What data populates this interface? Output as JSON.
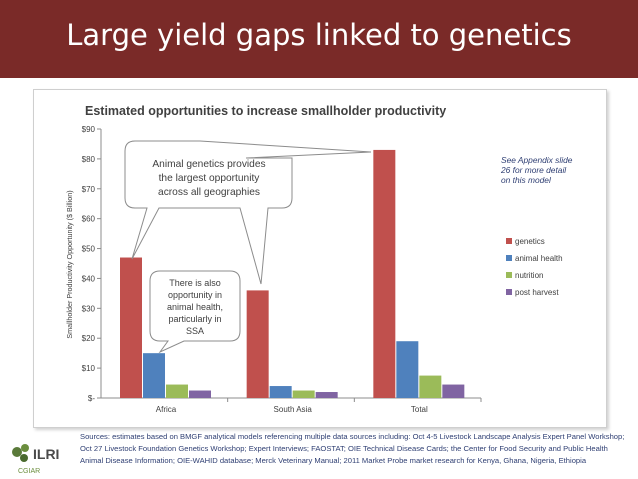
{
  "slide": {
    "title": "Large yield gaps linked to genetics",
    "sources": "Sources:  estimates based on  BMGF analytical models referencing multiple data sources including:  Oct 4-5 Livestock Landscape Analysis Expert Panel Workshop; Oct 27  Livestock Foundation Genetics Workshop; Expert Interviews; FAOSTAT; OIE Technical Disease Cards;  the Center for Food Security and  Public Health Animal Disease Information; OIE-WAHID database; Merck Veterinary Manual; 2011 Market Probe market research for Kenya, Ghana, Nigeria, Ethiopia"
  },
  "logo": {
    "name": "ILRI",
    "subtitle": "CGIAR"
  },
  "colors": {
    "banner": "#7a2a28",
    "genetics": "#c0504d",
    "animal_health": "#4f81bd",
    "nutrition": "#9bbb59",
    "post_harvest": "#8064a2"
  },
  "chart_data": {
    "type": "bar",
    "title": "Estimated opportunities to increase smallholder productivity",
    "xlabel": "",
    "ylabel": "Smallholder Productivity Opportunity ($ Billion)",
    "ylim": [
      0,
      90
    ],
    "yticks": [
      0,
      10,
      20,
      30,
      40,
      50,
      60,
      70,
      80,
      90
    ],
    "ytick_labels": [
      "$-",
      "$10",
      "$20",
      "$30",
      "$40",
      "$50",
      "$60",
      "$70",
      "$80",
      "$90"
    ],
    "categories": [
      "Africa",
      "South Asia",
      "Total"
    ],
    "series": [
      {
        "name": "genetics",
        "color": "#c0504d",
        "values": [
          47,
          36,
          83
        ]
      },
      {
        "name": "animal health",
        "color": "#4f81bd",
        "values": [
          15,
          4,
          19
        ]
      },
      {
        "name": "nutrition",
        "color": "#9bbb59",
        "values": [
          4.5,
          2.5,
          7.5
        ]
      },
      {
        "name": "post harvest",
        "color": "#8064a2",
        "values": [
          2.5,
          2,
          4.5
        ]
      }
    ],
    "grid": false,
    "legend": "right",
    "annotations": [
      {
        "text_lines": [
          "Animal genetics provides",
          "the largest opportunity",
          "across all geographies"
        ]
      },
      {
        "text_lines": [
          "There is also",
          "opportunity in",
          "animal health,",
          "particularly in",
          "SSA"
        ]
      },
      {
        "text_lines": [
          "See Appendix  slide",
          "26 for more detail",
          "on this model"
        ]
      }
    ]
  }
}
